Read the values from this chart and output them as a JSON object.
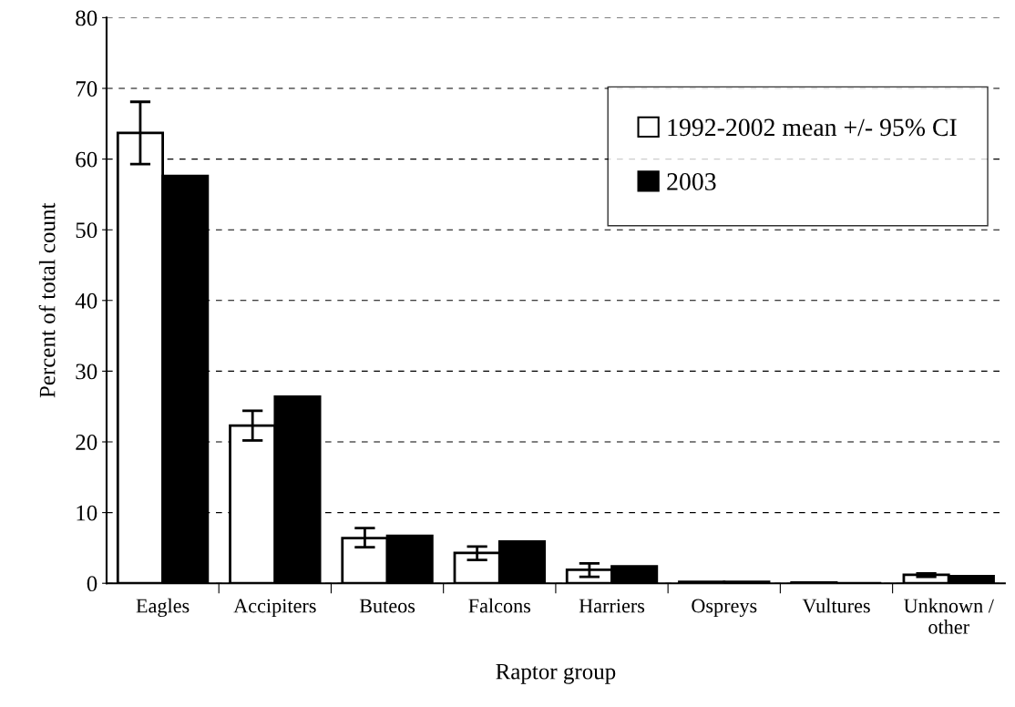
{
  "chart_data": {
    "type": "bar",
    "xlabel": "Raptor group",
    "ylabel": "Percent of total count",
    "categories": [
      "Eagles",
      "Accipiters",
      "Buteos",
      "Falcons",
      "Harriers",
      "Ospreys",
      "Vultures",
      "Unknown /\nother"
    ],
    "series": [
      {
        "name": "1992-2002 mean +/- 95% CI",
        "color": "#ffffff",
        "values": [
          63.7,
          22.3,
          6.4,
          4.3,
          1.9,
          0.2,
          0.1,
          1.2
        ],
        "errors": [
          [
            59.3,
            68.1
          ],
          [
            20.2,
            24.4
          ],
          [
            5.1,
            7.8
          ],
          [
            3.3,
            5.2
          ],
          [
            0.9,
            2.8
          ],
          null,
          null,
          [
            0.9,
            1.4
          ]
        ]
      },
      {
        "name": "2003",
        "color": "#000000",
        "values": [
          57.6,
          26.4,
          6.7,
          5.9,
          2.4,
          0.2,
          null,
          1.0
        ]
      }
    ],
    "ylim": [
      0,
      80
    ],
    "yticks": [
      0,
      10,
      20,
      30,
      40,
      50,
      60,
      70,
      80
    ],
    "grid": "y",
    "legend": "top right"
  }
}
